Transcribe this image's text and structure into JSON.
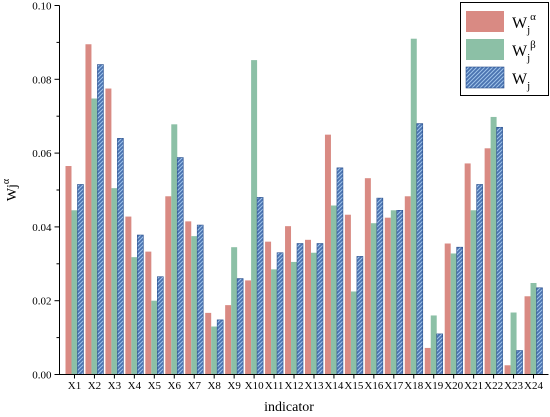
{
  "chart_data": {
    "type": "bar",
    "xlabel": "indicator",
    "ylabel": "Wj",
    "ylabel_sup": "α",
    "ylim": [
      0,
      0.1
    ],
    "yticks": [
      "0.00",
      "0.02",
      "0.04",
      "0.06",
      "0.08",
      "0.10"
    ],
    "legend_position": "top-right",
    "categories": [
      "X1",
      "X2",
      "X3",
      "X4",
      "X5",
      "X6",
      "X7",
      "X8",
      "X9",
      "X10",
      "X11",
      "X12",
      "X13",
      "X14",
      "X15",
      "X16",
      "X17",
      "X18",
      "X19",
      "X20",
      "X21",
      "X22",
      "X23",
      "X24"
    ],
    "series": [
      {
        "name": "Wj",
        "sup": "α",
        "color": "#d98a83",
        "pattern": "solid",
        "values": [
          0.0565,
          0.0895,
          0.0775,
          0.0428,
          0.0333,
          0.0483,
          0.0415,
          0.0167,
          0.0188,
          0.0255,
          0.036,
          0.0402,
          0.0365,
          0.065,
          0.0433,
          0.0532,
          0.0425,
          0.0483,
          0.0072,
          0.0355,
          0.0572,
          0.0613,
          0.0025,
          0.0212
        ]
      },
      {
        "name": "Wj",
        "sup": "β",
        "color": "#8cc0a6",
        "pattern": "solid",
        "values": [
          0.0445,
          0.0748,
          0.0505,
          0.0318,
          0.02,
          0.0678,
          0.0375,
          0.013,
          0.0345,
          0.0852,
          0.0285,
          0.0305,
          0.033,
          0.0458,
          0.0225,
          0.041,
          0.0445,
          0.091,
          0.016,
          0.0328,
          0.0445,
          0.0698,
          0.0168,
          0.0248
        ]
      },
      {
        "name": "Wj",
        "sup": "",
        "color": "#4a72b0",
        "pattern": "hatched",
        "values": [
          0.0515,
          0.084,
          0.064,
          0.0378,
          0.0265,
          0.0588,
          0.0405,
          0.0148,
          0.026,
          0.048,
          0.033,
          0.0355,
          0.0355,
          0.056,
          0.032,
          0.0478,
          0.0445,
          0.068,
          0.011,
          0.0345,
          0.0515,
          0.067,
          0.0065,
          0.0235
        ]
      }
    ]
  }
}
